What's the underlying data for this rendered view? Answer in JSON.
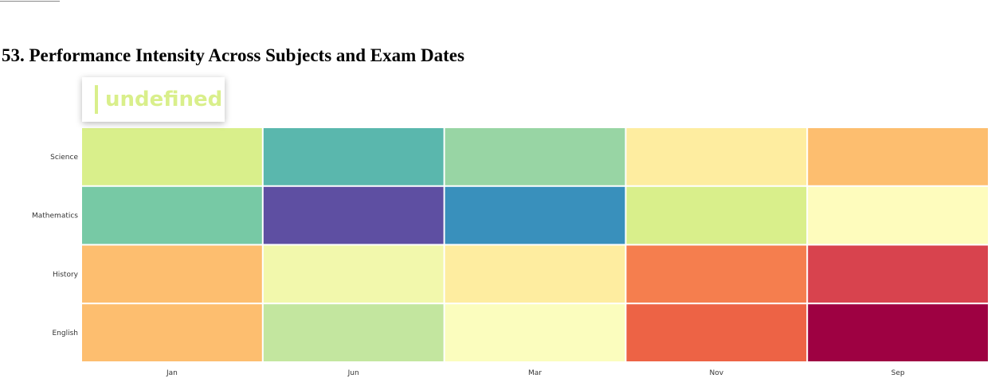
{
  "page": {
    "title": "53. Performance Intensity Across Subjects and Exam Dates"
  },
  "tooltip": {
    "text": "undefined",
    "color": "#d9ef8b"
  },
  "chart_data": {
    "type": "heatmap",
    "title": "53. Performance Intensity Across Subjects and Exam Dates",
    "x_categories": [
      "Jan",
      "Jun",
      "Mar",
      "Nov",
      "Sep"
    ],
    "y_categories": [
      "Science",
      "Mathematics",
      "History",
      "English"
    ],
    "cell_colors": [
      [
        "#d9ef8b",
        "#5ab7ad",
        "#98d5a4",
        "#feeda0",
        "#fdbe6f"
      ],
      [
        "#77c9a5",
        "#5e4fa2",
        "#3990bc",
        "#d9ef8b",
        "#fefcbd"
      ],
      [
        "#fdbe6f",
        "#f2f8ac",
        "#feeda0",
        "#f57e4e",
        "#d8434e"
      ],
      [
        "#fdbe6f",
        "#c3e69f",
        "#fbfdbe",
        "#ed6345",
        "#9e0142"
      ]
    ],
    "color_scale": "Spectral",
    "grid": false,
    "legend": "none"
  }
}
